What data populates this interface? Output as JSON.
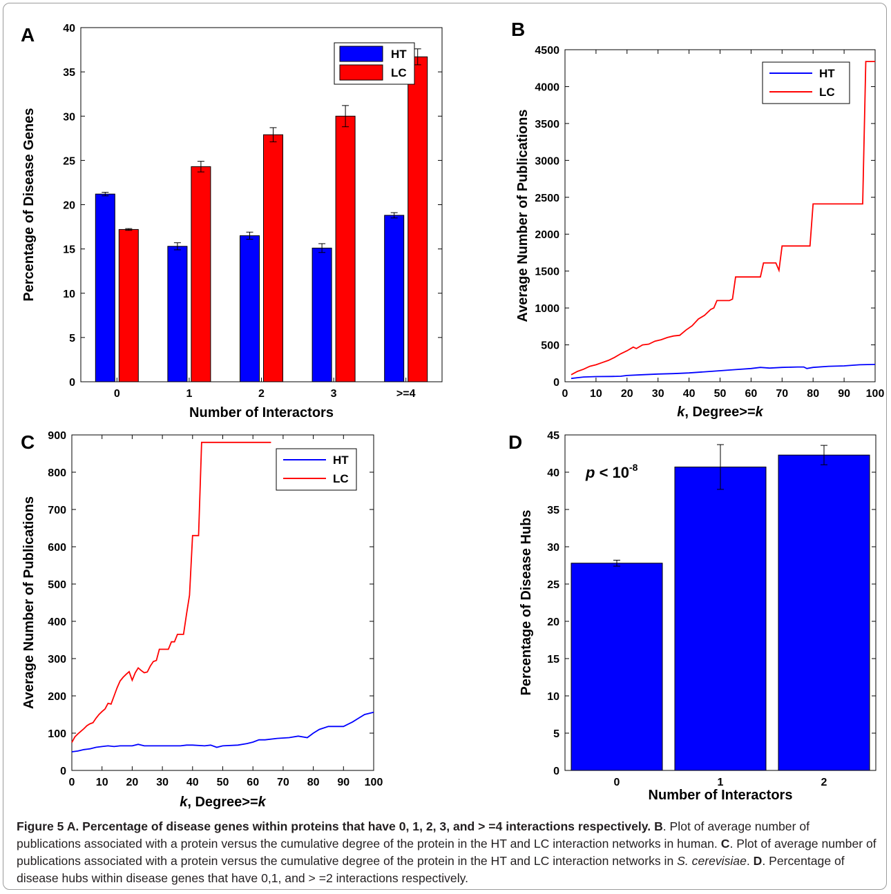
{
  "chart_data": [
    {
      "panel": "A",
      "type": "bar",
      "categories": [
        "0",
        "1",
        "2",
        "3",
        ">=4"
      ],
      "series": [
        {
          "name": "HT",
          "color": "#0000ff",
          "values": [
            21.2,
            15.3,
            16.5,
            15.1,
            18.8
          ],
          "errors": [
            0.2,
            0.4,
            0.4,
            0.5,
            0.3
          ]
        },
        {
          "name": "LC",
          "color": "#ff0000",
          "values": [
            17.2,
            24.3,
            27.9,
            30.0,
            36.7
          ],
          "errors": [
            0.1,
            0.6,
            0.8,
            1.2,
            0.9
          ]
        }
      ],
      "xlabel": "Number of Interactors",
      "ylabel": "Percentage of Disease Genes",
      "ylim": [
        0,
        40
      ],
      "yticks": [
        0,
        5,
        10,
        15,
        20,
        25,
        30,
        35,
        40
      ],
      "legend": "top-right"
    },
    {
      "panel": "B",
      "type": "line",
      "xlabel_var": "k",
      "xlabel": ", Degree>=",
      "xlabel_var2": "k",
      "ylabel": "Average Number of Publications",
      "xlim": [
        0,
        100
      ],
      "ylim": [
        0,
        4500
      ],
      "xticks": [
        0,
        10,
        20,
        30,
        40,
        50,
        60,
        70,
        80,
        90,
        100
      ],
      "yticks": [
        0,
        500,
        1000,
        1500,
        2000,
        2500,
        3000,
        3500,
        4000,
        4500
      ],
      "legend": "top-right",
      "series": [
        {
          "name": "HT",
          "color": "#0000ff",
          "points": [
            [
              2,
              45
            ],
            [
              4,
              55
            ],
            [
              6,
              65
            ],
            [
              10,
              70
            ],
            [
              15,
              72
            ],
            [
              18,
              75
            ],
            [
              20,
              85
            ],
            [
              25,
              95
            ],
            [
              30,
              105
            ],
            [
              35,
              110
            ],
            [
              40,
              120
            ],
            [
              45,
              135
            ],
            [
              50,
              150
            ],
            [
              55,
              165
            ],
            [
              60,
              180
            ],
            [
              63,
              195
            ],
            [
              66,
              185
            ],
            [
              70,
              195
            ],
            [
              75,
              200
            ],
            [
              77,
              200
            ],
            [
              78,
              180
            ],
            [
              80,
              195
            ],
            [
              85,
              210
            ],
            [
              90,
              215
            ],
            [
              93,
              225
            ],
            [
              95,
              230
            ],
            [
              100,
              235
            ]
          ]
        },
        {
          "name": "LC",
          "color": "#ff0000",
          "points": [
            [
              2,
              95
            ],
            [
              4,
              140
            ],
            [
              6,
              170
            ],
            [
              8,
              210
            ],
            [
              10,
              230
            ],
            [
              12,
              260
            ],
            [
              14,
              290
            ],
            [
              16,
              330
            ],
            [
              18,
              380
            ],
            [
              20,
              420
            ],
            [
              22,
              470
            ],
            [
              23,
              450
            ],
            [
              25,
              500
            ],
            [
              27,
              510
            ],
            [
              29,
              550
            ],
            [
              31,
              570
            ],
            [
              33,
              600
            ],
            [
              35,
              620
            ],
            [
              37,
              630
            ],
            [
              39,
              700
            ],
            [
              41,
              760
            ],
            [
              43,
              850
            ],
            [
              45,
              900
            ],
            [
              47,
              980
            ],
            [
              48,
              1000
            ],
            [
              49,
              1100
            ],
            [
              53,
              1100
            ],
            [
              54,
              1120
            ],
            [
              55,
              1420
            ],
            [
              63,
              1420
            ],
            [
              64,
              1610
            ],
            [
              68,
              1610
            ],
            [
              69,
              1510
            ],
            [
              70,
              1840
            ],
            [
              79,
              1840
            ],
            [
              80,
              2410
            ],
            [
              96,
              2410
            ],
            [
              97,
              4340
            ],
            [
              100,
              4340
            ]
          ]
        }
      ]
    },
    {
      "panel": "C",
      "type": "line",
      "xlabel_var": "k",
      "xlabel": ", Degree>=",
      "xlabel_var2": "k",
      "ylabel": "Average Number of Publications",
      "xlim": [
        0,
        100
      ],
      "ylim": [
        0,
        900
      ],
      "xticks": [
        0,
        10,
        20,
        30,
        40,
        50,
        60,
        70,
        80,
        90,
        100
      ],
      "yticks": [
        0,
        100,
        200,
        300,
        400,
        500,
        600,
        700,
        800,
        900
      ],
      "legend": "top-right",
      "series": [
        {
          "name": "HT",
          "color": "#0000ff",
          "points": [
            [
              0,
              50
            ],
            [
              2,
              52
            ],
            [
              4,
              56
            ],
            [
              6,
              58
            ],
            [
              8,
              62
            ],
            [
              10,
              64
            ],
            [
              12,
              66
            ],
            [
              14,
              64
            ],
            [
              16,
              66
            ],
            [
              20,
              66
            ],
            [
              22,
              70
            ],
            [
              24,
              66
            ],
            [
              30,
              66
            ],
            [
              36,
              66
            ],
            [
              38,
              68
            ],
            [
              40,
              68
            ],
            [
              44,
              66
            ],
            [
              46,
              68
            ],
            [
              48,
              62
            ],
            [
              50,
              66
            ],
            [
              55,
              68
            ],
            [
              58,
              72
            ],
            [
              60,
              76
            ],
            [
              62,
              82
            ],
            [
              64,
              82
            ],
            [
              68,
              86
            ],
            [
              72,
              88
            ],
            [
              75,
              92
            ],
            [
              78,
              88
            ],
            [
              80,
              100
            ],
            [
              82,
              110
            ],
            [
              85,
              118
            ],
            [
              90,
              118
            ],
            [
              93,
              130
            ],
            [
              95,
              140
            ],
            [
              97,
              150
            ],
            [
              100,
              156
            ]
          ]
        },
        {
          "name": "LC",
          "color": "#ff0000",
          "points": [
            [
              0,
              75
            ],
            [
              1,
              90
            ],
            [
              2,
              98
            ],
            [
              3,
              105
            ],
            [
              4,
              112
            ],
            [
              5,
              120
            ],
            [
              6,
              125
            ],
            [
              7,
              128
            ],
            [
              8,
              140
            ],
            [
              9,
              150
            ],
            [
              10,
              158
            ],
            [
              11,
              165
            ],
            [
              12,
              180
            ],
            [
              13,
              178
            ],
            [
              14,
              200
            ],
            [
              15,
              222
            ],
            [
              16,
              240
            ],
            [
              17,
              250
            ],
            [
              18,
              258
            ],
            [
              19,
              265
            ],
            [
              20,
              242
            ],
            [
              21,
              262
            ],
            [
              22,
              275
            ],
            [
              23,
              268
            ],
            [
              24,
              262
            ],
            [
              25,
              264
            ],
            [
              26,
              280
            ],
            [
              27,
              292
            ],
            [
              28,
              295
            ],
            [
              29,
              325
            ],
            [
              30,
              325
            ],
            [
              32,
              325
            ],
            [
              33,
              345
            ],
            [
              34,
              345
            ],
            [
              35,
              365
            ],
            [
              37,
              365
            ],
            [
              38,
              420
            ],
            [
              39,
              470
            ],
            [
              40,
              630
            ],
            [
              42,
              630
            ],
            [
              43,
              880
            ],
            [
              66,
              880
            ]
          ]
        }
      ]
    },
    {
      "panel": "D",
      "type": "bar",
      "categories": [
        "0",
        "1",
        "2"
      ],
      "series": [
        {
          "name": "",
          "color": "#0000ff",
          "values": [
            27.8,
            40.7,
            42.3
          ],
          "errors": [
            0.4,
            3.0,
            1.3
          ]
        }
      ],
      "xlabel": "Number of Interactors",
      "ylabel": "Percentage of Disease Hubs",
      "ylim": [
        0,
        45
      ],
      "yticks": [
        0,
        5,
        10,
        15,
        20,
        25,
        30,
        35,
        40,
        45
      ],
      "annotation": {
        "var": "p",
        "text": " < 10",
        "exp": "-8"
      }
    }
  ],
  "caption": {
    "figure_label": "Figure 5",
    "a_label": "A",
    "a_text": ". Percentage of disease genes within proteins that have 0, 1, 2, 3, and > =4 interactions respectively.",
    "b_label": "B",
    "b_text": ". Plot of average number of publications associated with a protein versus the cumulative degree of the protein in the HT and LC interaction networks in human.",
    "c_label": "C",
    "c_text": ". Plot of average number of publications associated with a protein versus the cumulative degree of the protein in the HT and LC interaction networks in",
    "c_species": "S. cerevisiae",
    "c_end": ".",
    "d_label": "D",
    "d_text": ". Percentage of disease hubs within disease genes that have 0,1, and > =2 interactions respectively."
  }
}
